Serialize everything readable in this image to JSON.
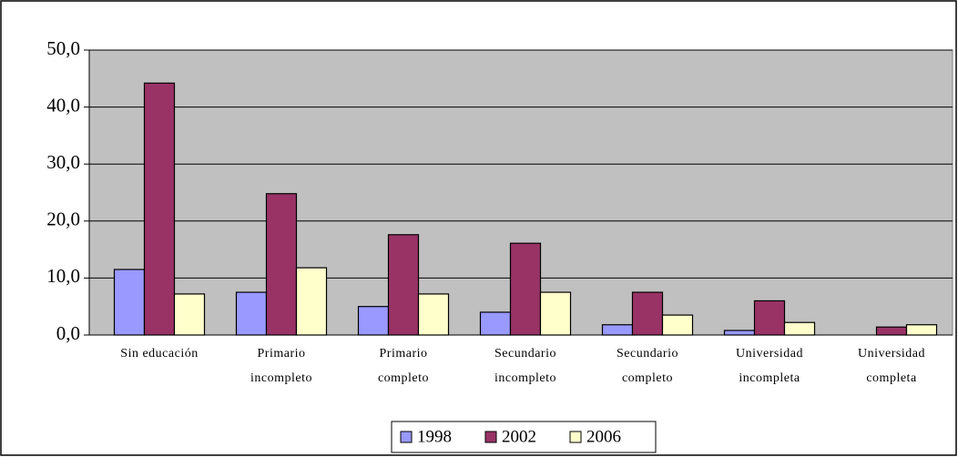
{
  "chart_data": {
    "type": "bar",
    "categories": [
      [
        "Sin educación"
      ],
      [
        "Primario",
        "incompleto"
      ],
      [
        "Primario",
        "completo"
      ],
      [
        "Secundario",
        "incompleto"
      ],
      [
        "Secundario",
        "completo"
      ],
      [
        "Universidad",
        "incompleta"
      ],
      [
        "Universidad",
        "completa"
      ]
    ],
    "series": [
      {
        "name": "1998",
        "color": "#9999ff",
        "values": [
          11.5,
          7.5,
          5.0,
          4.0,
          1.8,
          0.8,
          null
        ]
      },
      {
        "name": "2002",
        "color": "#993366",
        "values": [
          44.2,
          24.8,
          17.6,
          16.1,
          7.5,
          6.0,
          1.4
        ]
      },
      {
        "name": "2006",
        "color": "#ffffcc",
        "values": [
          7.2,
          11.8,
          7.2,
          7.5,
          3.5,
          2.2,
          1.8
        ]
      }
    ],
    "ylim": [
      0,
      50
    ],
    "yticks": [
      {
        "value": 0,
        "label": "0,0"
      },
      {
        "value": 10,
        "label": "10,0"
      },
      {
        "value": 20,
        "label": "20,0"
      },
      {
        "value": 30,
        "label": "30,0"
      },
      {
        "value": 40,
        "label": "40,0"
      },
      {
        "value": 50,
        "label": "50,0"
      }
    ],
    "grid": true,
    "plot_background": "#c0c0c0",
    "legend": "bottom"
  }
}
